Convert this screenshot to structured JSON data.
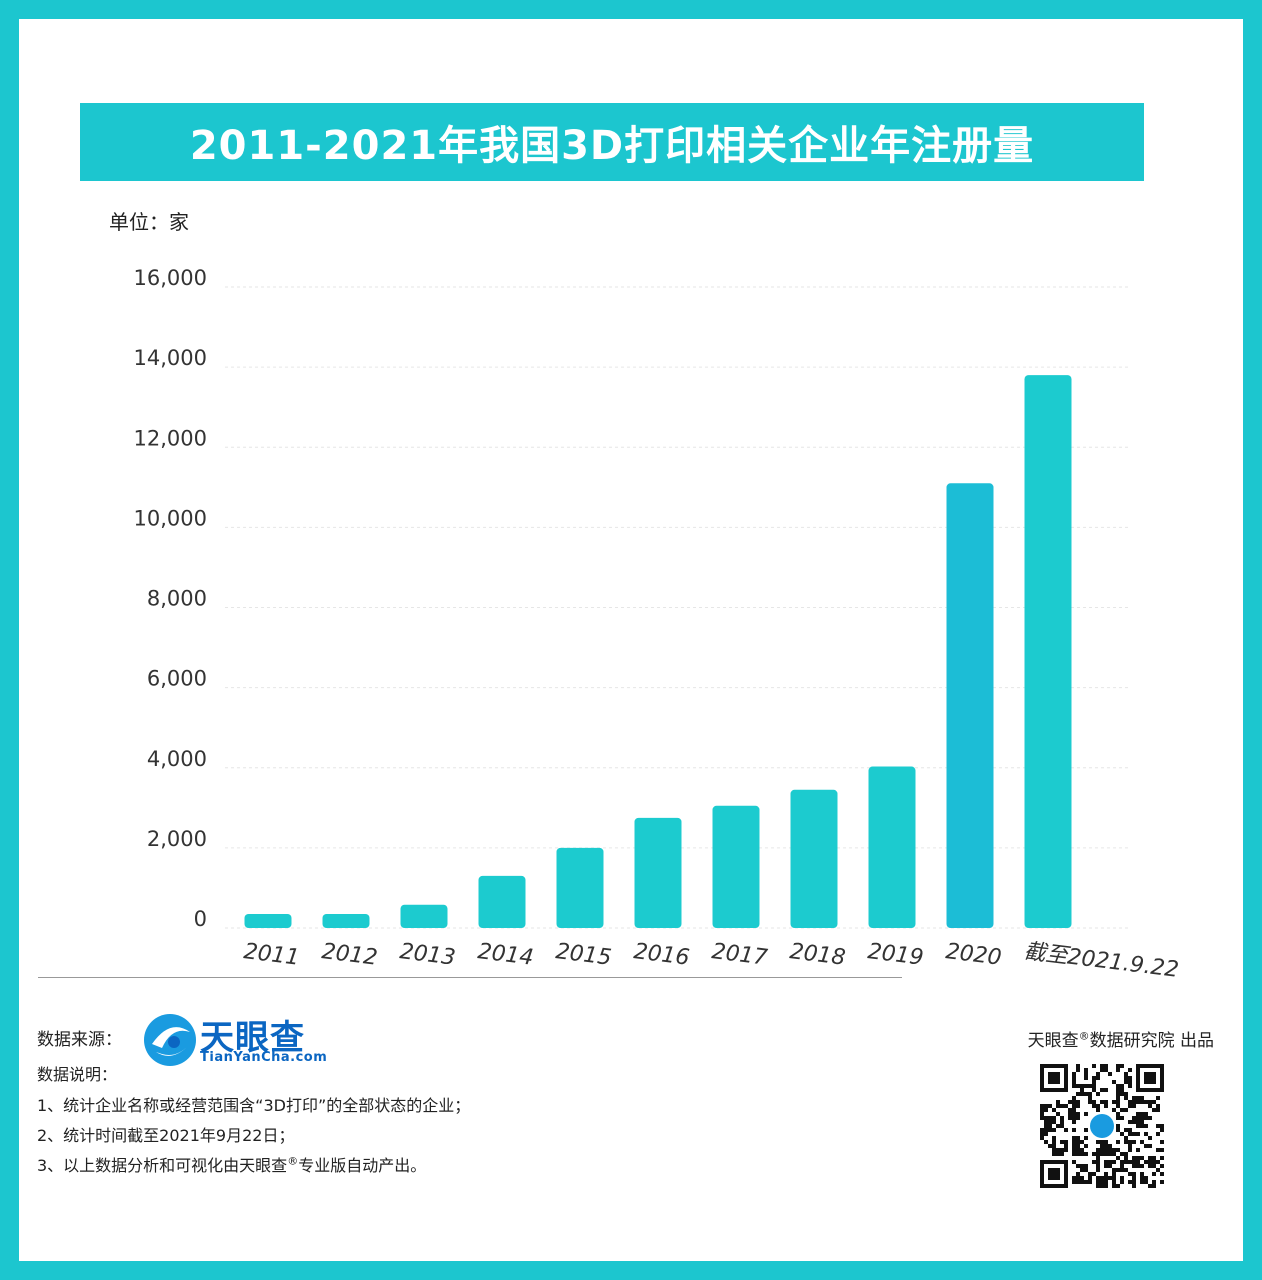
{
  "title": "2011-2021年我国3D打印相关企业年注册量",
  "unit_label": "单位：家",
  "colors": {
    "background": "#1cc6cf",
    "bar": "#1ccbcf",
    "bar_highlight": "#1cbdd6",
    "grid": "#e6e6e6",
    "brand_blue": "#0b66c2"
  },
  "chart_data": {
    "type": "bar",
    "categories": [
      "2011",
      "2012",
      "2013",
      "2014",
      "2015",
      "2016",
      "2017",
      "2018",
      "2019",
      "2020",
      "截至2021.9.22"
    ],
    "values": [
      350,
      350,
      580,
      1300,
      2000,
      2750,
      3050,
      3450,
      4030,
      11100,
      13800
    ],
    "highlight_index": 9,
    "ylim": [
      0,
      16000
    ],
    "yticks": [
      "0",
      "2,000",
      "4,000",
      "6,000",
      "8,000",
      "10,000",
      "12,000",
      "14,000",
      "16,000"
    ],
    "ytick_values": [
      0,
      2000,
      4000,
      6000,
      8000,
      10000,
      12000,
      14000,
      16000
    ],
    "grid": true,
    "xlabel": "",
    "ylabel": "单位：家"
  },
  "footer": {
    "source_label": "数据来源：",
    "logo_cn": "天眼查",
    "logo_en": "TianYanCha.com",
    "notes_title": "数据说明：",
    "notes": [
      "1、统计企业名称或经营范围含“3D打印”的全部状态的企业；",
      "2、统计时间截至2021年9月22日；",
      "3、以上数据分析和可视化由天眼查",
      "专业版自动产出。"
    ],
    "publisher_prefix": "天眼查",
    "registered_mark": "®",
    "publisher_suffix": "数据研究院 出品"
  }
}
